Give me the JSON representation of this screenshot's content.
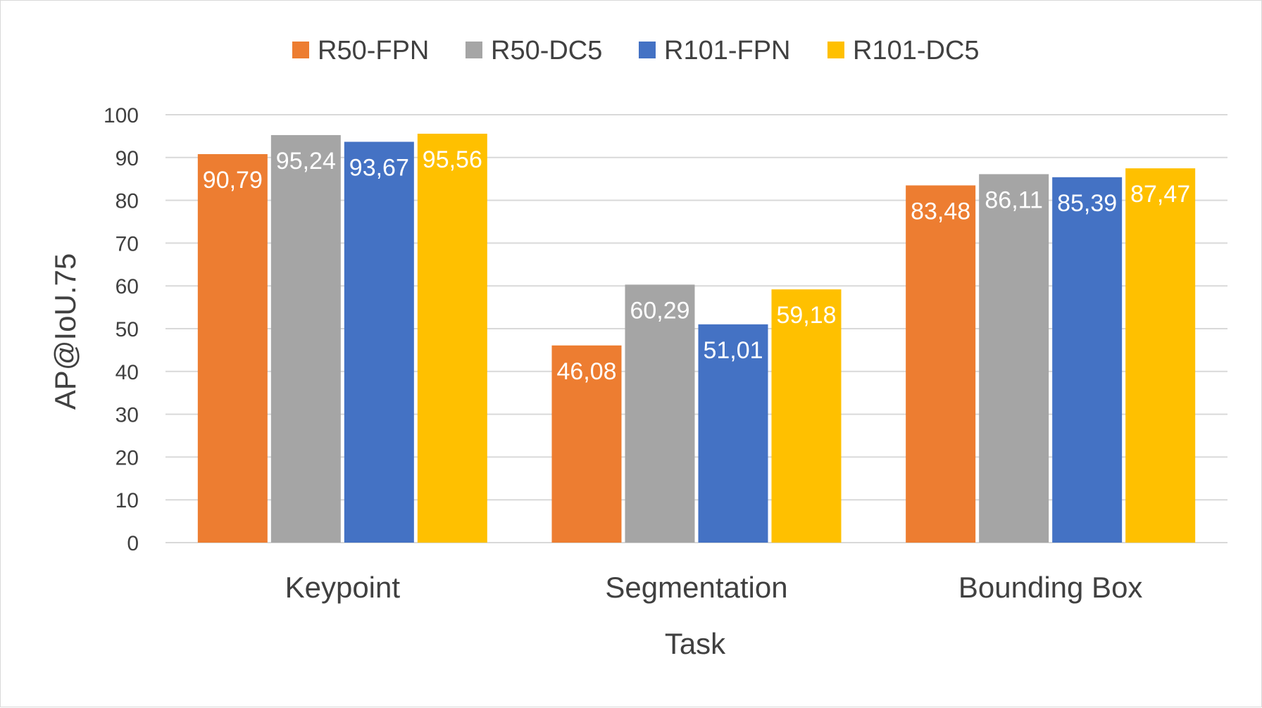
{
  "chart_data": {
    "type": "bar",
    "title": "",
    "xlabel": "Task",
    "ylabel": "AP@IoU.75",
    "ylim": [
      0,
      100
    ],
    "yticks": [
      0,
      10,
      20,
      30,
      40,
      50,
      60,
      70,
      80,
      90,
      100
    ],
    "grid": true,
    "legend_position": "top",
    "categories": [
      "Keypoint",
      "Segmentation",
      "Bounding Box"
    ],
    "series": [
      {
        "name": "R50-FPN",
        "color": "#ED7D31",
        "values": [
          90.79,
          46.08,
          83.48
        ],
        "labels": [
          "90,79",
          "46,08",
          "83,48"
        ]
      },
      {
        "name": "R50-DC5",
        "color": "#A5A5A5",
        "values": [
          95.24,
          60.29,
          86.11
        ],
        "labels": [
          "95,24",
          "60,29",
          "86,11"
        ]
      },
      {
        "name": "R101-FPN",
        "color": "#4472C4",
        "values": [
          93.67,
          51.01,
          85.39
        ],
        "labels": [
          "93,67",
          "51,01",
          "85,39"
        ]
      },
      {
        "name": "R101-DC5",
        "color": "#FFC000",
        "values": [
          95.56,
          59.18,
          87.47
        ],
        "labels": [
          "95,56",
          "59,18",
          "87,47"
        ]
      }
    ]
  }
}
